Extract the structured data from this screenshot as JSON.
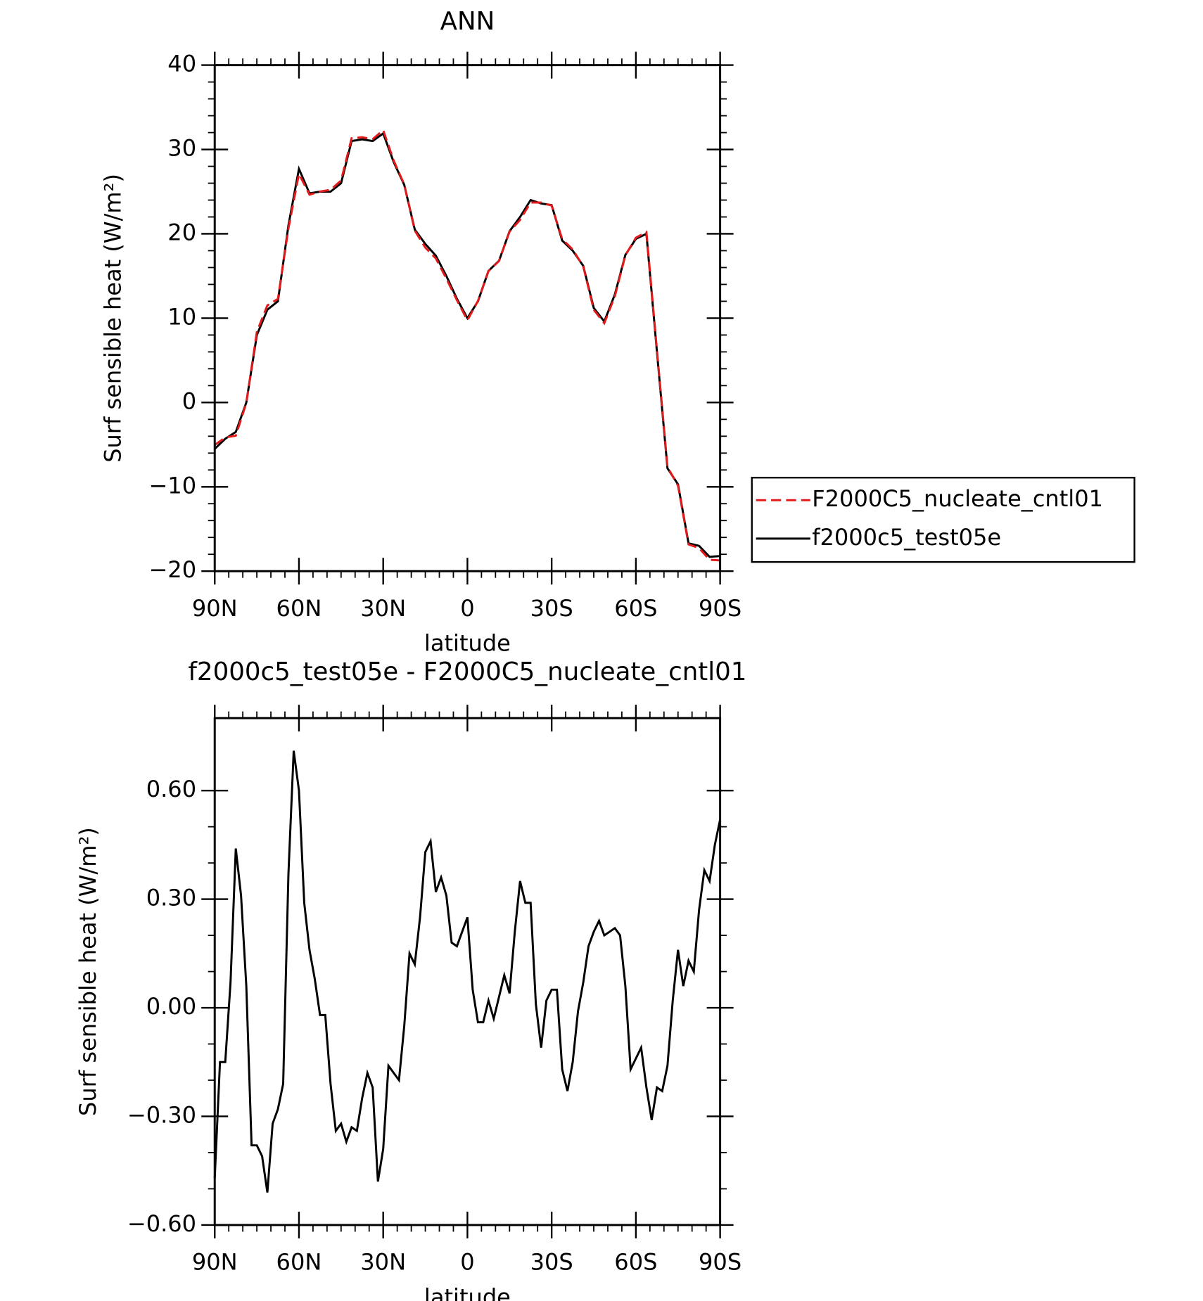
{
  "chart_data": [
    {
      "type": "line",
      "title": "ANN",
      "x_label": "latitude",
      "y_label": "Surf sensible heat (W/m²)",
      "x": [
        90,
        86.25,
        82.5,
        78.75,
        75,
        71.25,
        67.5,
        63.75,
        60,
        56.25,
        52.5,
        48.75,
        45,
        41.25,
        37.5,
        33.75,
        30,
        26.25,
        22.5,
        18.75,
        15,
        11.25,
        7.5,
        3.75,
        0,
        -3.75,
        -7.5,
        -11.25,
        -15,
        -18.75,
        -22.5,
        -26.25,
        -30,
        -33.75,
        -37.5,
        -41.25,
        -45,
        -48.75,
        -52.5,
        -56.25,
        -60,
        -63.75,
        -67.5,
        -71.25,
        -75,
        -78.75,
        -82.5,
        -86.25,
        -90
      ],
      "series": [
        {
          "name": "F2000C5_nucleate_cntl01",
          "color": "#e31a1c",
          "style": "dashed",
          "values": [
            -5.03,
            -4.15,
            -3.94,
            -0.06,
            8.38,
            11.51,
            12.28,
            20.63,
            27.1,
            24.64,
            25.02,
            25.21,
            26.32,
            31.33,
            31.45,
            31.22,
            32.29,
            28.68,
            25.85,
            20.38,
            18.37,
            17.08,
            14.69,
            12.13,
            9.75,
            12.04,
            15.58,
            16.77,
            20.26,
            21.65,
            23.71,
            23.71,
            23.35,
            19.37,
            18.15,
            16.13,
            10.99,
            9.4,
            12.58,
            17.44,
            19.54,
            20.22,
            6.23,
            -7.64,
            -9.86,
            -16.83,
            -17.27,
            -18.65,
            -18.72
          ]
        },
        {
          "name": "f2000c5_test05e",
          "color": "#000000",
          "style": "solid",
          "values": [
            -5.5,
            -4.3,
            -3.5,
            0,
            8,
            11,
            12,
            21,
            27.7,
            24.8,
            25,
            25,
            26,
            31,
            31.2,
            31,
            31.9,
            28.5,
            25.8,
            20.5,
            18.8,
            17.4,
            15,
            12.3,
            10,
            12,
            15.6,
            16.8,
            20.3,
            22,
            24,
            23.6,
            23.4,
            19.2,
            18,
            16.2,
            11.2,
            9.6,
            12.8,
            17.5,
            19.4,
            20,
            6,
            -7.8,
            -9.7,
            -16.7,
            -17,
            -18.3,
            -18.2
          ]
        }
      ],
      "xlim": [
        90,
        -90
      ],
      "xticks": [
        {
          "value": 90,
          "label": "90N"
        },
        {
          "value": 60,
          "label": "60N"
        },
        {
          "value": 30,
          "label": "30N"
        },
        0,
        {
          "value": -30,
          "label": "30S"
        },
        {
          "value": -60,
          "label": "60S"
        },
        {
          "value": -90,
          "label": "90S"
        }
      ],
      "ylim": [
        -20,
        40
      ],
      "yticks": [
        {
          "value": -20,
          "label": "−20"
        },
        {
          "value": -10,
          "label": "−10"
        },
        0,
        10,
        20,
        30,
        40
      ],
      "legend": "right"
    },
    {
      "type": "line",
      "title": "f2000c5_test05e - F2000C5_nucleate_cntl01",
      "x_label": "latitude",
      "y_label": "Surf sensible heat (W/m²)",
      "x": [
        90,
        88.125,
        86.25,
        84.375,
        82.5,
        80.625,
        78.75,
        76.875,
        75,
        73.125,
        71.25,
        69.375,
        67.5,
        65.625,
        63.75,
        61.875,
        60,
        58.125,
        56.25,
        54.375,
        52.5,
        50.625,
        48.75,
        46.875,
        45,
        43.125,
        41.25,
        39.375,
        37.5,
        35.625,
        33.75,
        31.875,
        30,
        28.125,
        26.25,
        24.375,
        22.5,
        20.625,
        18.75,
        16.875,
        15,
        13.125,
        11.25,
        9.375,
        7.5,
        5.625,
        3.75,
        1.875,
        0,
        -1.875,
        -3.75,
        -5.625,
        -7.5,
        -9.375,
        -11.25,
        -13.125,
        -15,
        -16.875,
        -18.75,
        -20.625,
        -22.5,
        -24.375,
        -26.25,
        -28.125,
        -30,
        -31.875,
        -33.75,
        -35.625,
        -37.5,
        -39.375,
        -41.25,
        -43.125,
        -45,
        -46.875,
        -48.75,
        -50.625,
        -52.5,
        -54.375,
        -56.25,
        -58.125,
        -60,
        -61.875,
        -63.75,
        -65.625,
        -67.5,
        -69.375,
        -71.25,
        -73.125,
        -75,
        -76.875,
        -78.75,
        -80.625,
        -82.5,
        -84.375,
        -86.25,
        -88.125,
        -90
      ],
      "series": [
        {
          "color": "#000000",
          "style": "solid",
          "values": [
            -0.47,
            -0.15,
            -0.15,
            0.07,
            0.44,
            0.31,
            0.06,
            -0.38,
            -0.38,
            -0.41,
            -0.51,
            -0.32,
            -0.28,
            -0.21,
            0.37,
            0.71,
            0.6,
            0.29,
            0.16,
            0.08,
            -0.02,
            -0.02,
            -0.21,
            -0.34,
            -0.32,
            -0.37,
            -0.33,
            -0.34,
            -0.25,
            -0.18,
            -0.22,
            -0.48,
            -0.39,
            -0.16,
            -0.18,
            -0.2,
            -0.05,
            0.15,
            0.12,
            0.25,
            0.43,
            0.46,
            0.32,
            0.36,
            0.31,
            0.18,
            0.17,
            0.21,
            0.25,
            0.05,
            -0.04,
            -0.04,
            0.02,
            -0.03,
            0.03,
            0.09,
            0.04,
            0.21,
            0.35,
            0.29,
            0.29,
            0.01,
            -0.11,
            0.02,
            0.05,
            0.05,
            -0.17,
            -0.23,
            -0.15,
            -0.01,
            0.07,
            0.17,
            0.21,
            0.24,
            0.2,
            0.21,
            0.22,
            0.2,
            0.06,
            -0.17,
            -0.14,
            -0.11,
            -0.22,
            -0.31,
            -0.22,
            -0.23,
            -0.16,
            0.02,
            0.16,
            0.06,
            0.13,
            0.1,
            0.27,
            0.38,
            0.35,
            0.45,
            0.52
          ]
        }
      ],
      "xlim": [
        90,
        -90
      ],
      "xticks": [
        {
          "value": 90,
          "label": "90N"
        },
        {
          "value": 60,
          "label": "60N"
        },
        {
          "value": 30,
          "label": "30N"
        },
        0,
        {
          "value": -30,
          "label": "30S"
        },
        {
          "value": -60,
          "label": "60S"
        },
        {
          "value": -90,
          "label": "90S"
        }
      ],
      "ylim": [
        -0.6,
        0.8
      ],
      "yticks": [
        {
          "value": -0.6,
          "label": "−0.60"
        },
        {
          "value": -0.3,
          "label": "−0.30"
        },
        {
          "value": 0,
          "label": "0.00"
        },
        {
          "value": 0.3,
          "label": "0.30"
        },
        {
          "value": 0.6,
          "label": "0.60"
        }
      ]
    }
  ]
}
